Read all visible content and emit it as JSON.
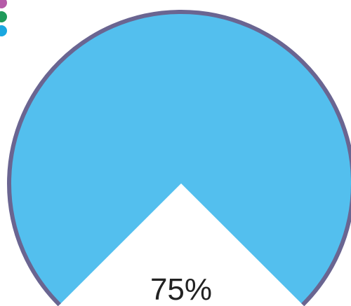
{
  "chart_data": {
    "type": "pie",
    "slices": [
      {
        "value": 75,
        "color": "#53bfee"
      }
    ],
    "total": 100,
    "center_label": "75%",
    "outline_color": "#6a6591",
    "legend_dot_colors": [
      "#b55aa8",
      "#1f9a5a",
      "#1aa7e0"
    ]
  }
}
